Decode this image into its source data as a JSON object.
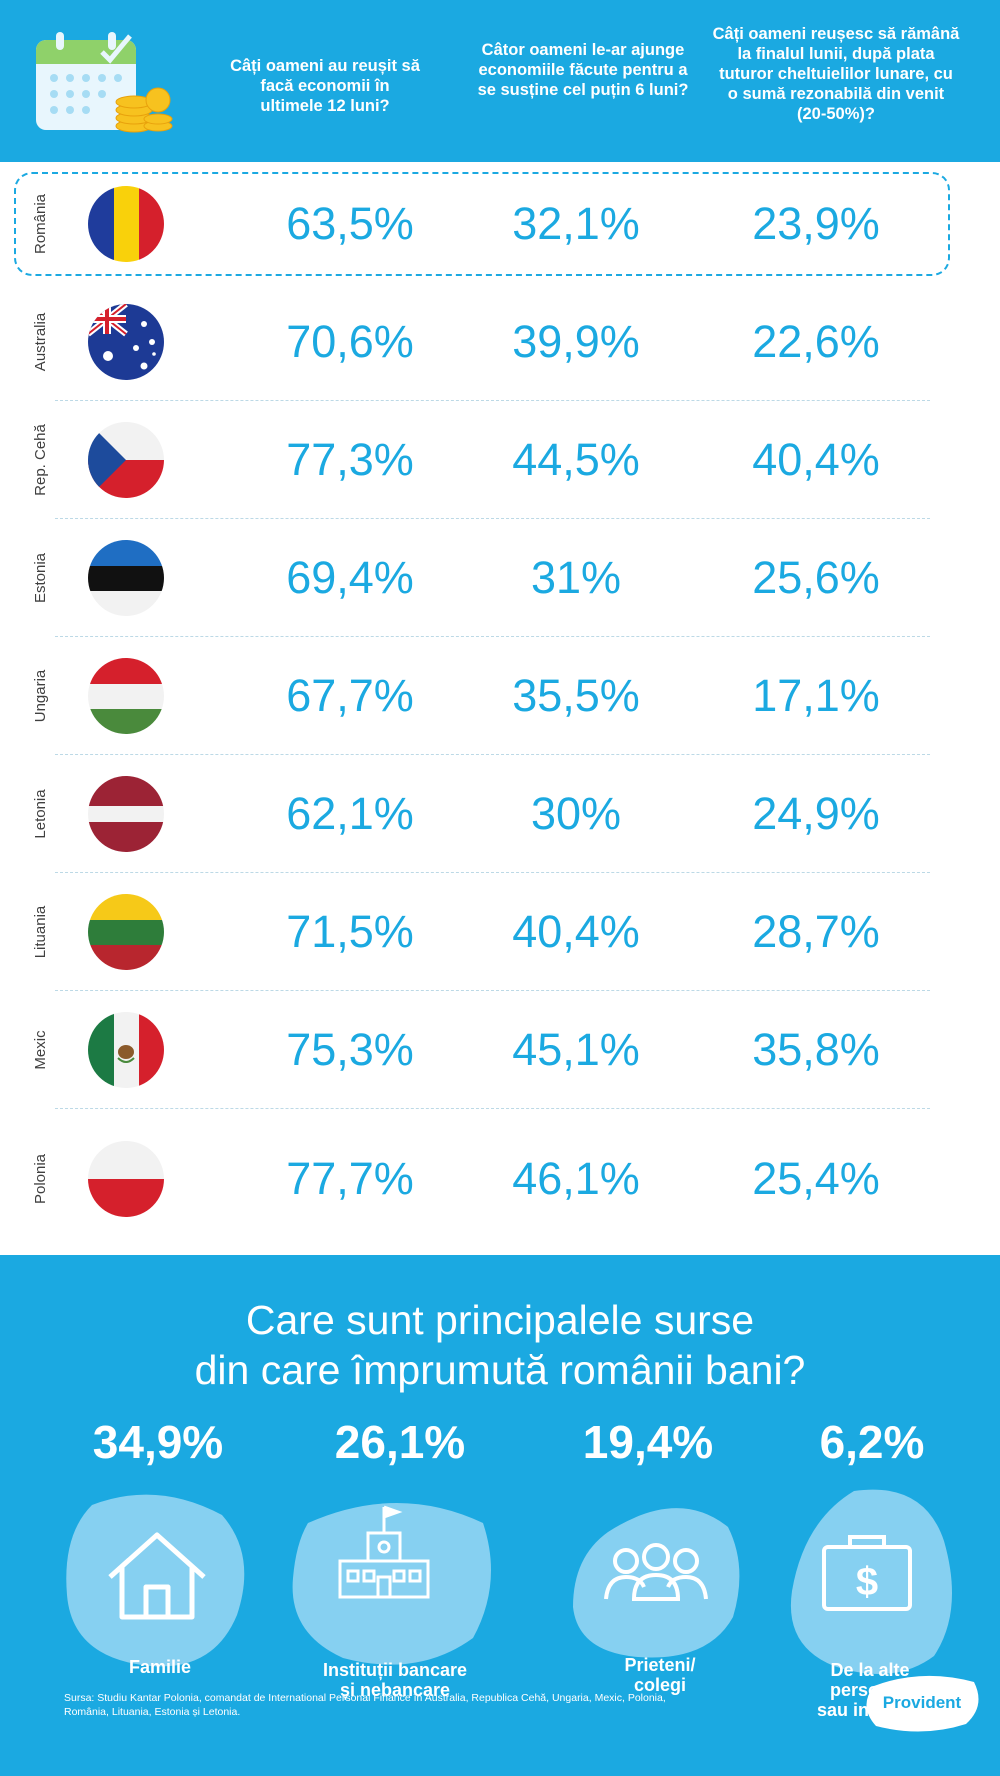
{
  "header": {
    "q1": "Câți oameni au reușit să facă economii în ultimele 12 luni?",
    "q2": "Câtor oameni le-ar ajunge economiile făcute pentru a se susține cel puțin 6 luni?",
    "q3": "Câți oameni reușesc să rămână la finalul lunii, după plata tuturor cheltuielilor lunare, cu o sumă rezonabilă din venit (20-50%)?"
  },
  "rows": [
    {
      "country": "România",
      "v1": "63,5%",
      "v2": "32,1%",
      "v3": "23,9%"
    },
    {
      "country": "Australia",
      "v1": "70,6%",
      "v2": "39,9%",
      "v3": "22,6%"
    },
    {
      "country": "Rep. Cehă",
      "v1": "77,3%",
      "v2": "44,5%",
      "v3": "40,4%"
    },
    {
      "country": "Estonia",
      "v1": "69,4%",
      "v2": "31%",
      "v3": "25,6%"
    },
    {
      "country": "Ungaria",
      "v1": "67,7%",
      "v2": "35,5%",
      "v3": "17,1%"
    },
    {
      "country": "Letonia",
      "v1": "62,1%",
      "v2": "30%",
      "v3": "24,9%"
    },
    {
      "country": "Lituania",
      "v1": "71,5%",
      "v2": "40,4%",
      "v3": "28,7%"
    },
    {
      "country": "Mexic",
      "v1": "75,3%",
      "v2": "45,1%",
      "v3": "35,8%"
    },
    {
      "country": "Polonia",
      "v1": "77,7%",
      "v2": "46,1%",
      "v3": "25,4%"
    }
  ],
  "bottom": {
    "title_line1": "Care sunt principalele surse",
    "title_line2": "din care împrumută românii bani?",
    "sources": [
      {
        "pct": "34,9%",
        "label": "Familie"
      },
      {
        "pct": "26,1%",
        "label_line1": "Instituții bancare",
        "label_line2": "și nebancare"
      },
      {
        "pct": "19,4%",
        "label_line1": "Prieteni/",
        "label_line2": "colegi"
      },
      {
        "pct": "6,2%",
        "label_line1": "De la alte",
        "label_line2": "persoane",
        "label_line3": "sau instituții"
      }
    ],
    "source_note": "Sursa: Studiu Kantar Polonia, comandat de International Personal Finance în Australia, Republica Cehă, Ungaria, Mexic, Polonia, România, Lituania, Estonia și Letonia.",
    "logo": "Provident"
  },
  "colors": {
    "brand_blue": "#1ba9e1",
    "white": "#ffffff"
  }
}
